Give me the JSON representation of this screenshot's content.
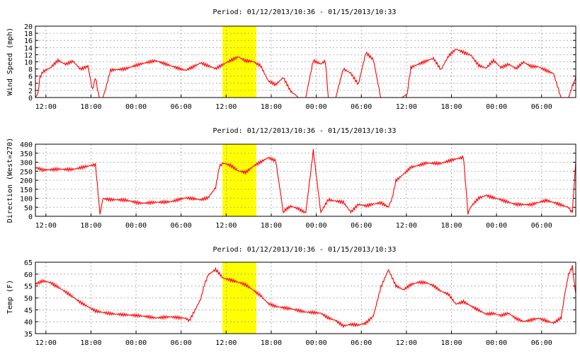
{
  "colors": {
    "series": "#ff0000",
    "highlight": "#ffff00",
    "grid": "#a0a0a0",
    "axis": "#000000"
  },
  "chart_data": [
    {
      "type": "line",
      "title": "Period: 01/12/2013/10:36 - 01/15/2013/10:33",
      "xlabel": "",
      "ylabel": "Wind Speed (mph)",
      "x_tick_labels": [
        "12:00",
        "18:00",
        "00:00",
        "06:00",
        "12:00",
        "18:00",
        "00:00",
        "06:00",
        "12:00",
        "18:00",
        "00:00",
        "06:00"
      ],
      "x_tick_hours": [
        1.4,
        7.4,
        13.4,
        19.4,
        25.4,
        31.4,
        37.4,
        43.4,
        49.4,
        55.4,
        61.4,
        67.4
      ],
      "xlim_hours": [
        0,
        71.95
      ],
      "ylim": [
        0,
        20
      ],
      "yticks": [
        0,
        2,
        4,
        6,
        8,
        10,
        12,
        14,
        16,
        18,
        20
      ],
      "grid": true,
      "highlight_hours": [
        24.9,
        29.4
      ],
      "series": [
        {
          "x_hours": [
            0,
            0.3,
            0.6,
            1,
            2,
            3,
            4,
            5,
            6,
            7,
            7.6,
            8,
            8.5,
            9,
            10,
            12,
            14,
            16,
            18,
            20,
            22,
            23,
            24,
            25,
            26,
            27,
            28,
            29,
            30,
            31,
            32,
            33,
            34,
            35,
            35.5,
            36,
            37,
            38,
            38.6,
            39,
            40,
            41,
            42,
            43,
            44,
            45,
            46,
            47,
            48,
            48.8,
            49.5,
            50,
            51,
            52,
            53,
            54,
            55,
            56,
            57,
            58,
            59,
            60,
            61,
            62,
            63,
            64,
            65,
            66,
            67,
            68,
            69,
            70,
            71,
            71.5,
            71.95
          ],
          "values": [
            0,
            1,
            6,
            7,
            8,
            10,
            9,
            10,
            8,
            9,
            2,
            6,
            0,
            0,
            8,
            8,
            9,
            10,
            9,
            8,
            10,
            9,
            8,
            9,
            10,
            11,
            10,
            10,
            9,
            5,
            4,
            6,
            2,
            0,
            0,
            0,
            10,
            9,
            10,
            0,
            0,
            8,
            7,
            4,
            13,
            11,
            0,
            0,
            0,
            0,
            1,
            8,
            9,
            10,
            11,
            8,
            12,
            14,
            13,
            12,
            9,
            8,
            10,
            8,
            9,
            8,
            10,
            9,
            9,
            8,
            7,
            0,
            0,
            3,
            6
          ]
        }
      ]
    },
    {
      "type": "line",
      "title": "Period: 01/12/2013/10:36 - 01/15/2013/10:33",
      "xlabel": "",
      "ylabel": "Direction (West=270)",
      "x_tick_labels": [
        "12:00",
        "18:00",
        "00:00",
        "06:00",
        "12:00",
        "18:00",
        "00:00",
        "06:00",
        "12:00",
        "18:00",
        "00:00",
        "06:00"
      ],
      "x_tick_hours": [
        1.4,
        7.4,
        13.4,
        19.4,
        25.4,
        31.4,
        37.4,
        43.4,
        49.4,
        55.4,
        61.4,
        67.4
      ],
      "xlim_hours": [
        0,
        71.95
      ],
      "ylim": [
        0,
        400
      ],
      "yticks": [
        0,
        50,
        100,
        150,
        200,
        250,
        300,
        350,
        400
      ],
      "grid": true,
      "highlight_hours": [
        24.9,
        29.4
      ],
      "series": [
        {
          "x_hours": [
            0,
            1,
            3,
            5,
            7,
            8,
            8.6,
            9,
            10,
            12,
            14,
            16,
            18,
            20,
            22,
            23,
            24,
            24.5,
            25,
            26,
            27,
            28,
            29,
            30,
            30.5,
            31,
            32,
            33,
            34,
            35,
            36,
            37,
            38,
            39,
            40,
            41,
            42,
            43,
            44,
            45,
            46,
            47,
            47.5,
            48,
            50,
            52,
            54,
            56,
            57,
            57.6,
            58,
            59,
            60,
            62,
            64,
            66,
            68,
            70,
            71,
            71.5,
            71.95
          ],
          "values": [
            270,
            260,
            270,
            265,
            275,
            280,
            10,
            90,
            85,
            90,
            80,
            85,
            80,
            95,
            85,
            100,
            160,
            280,
            300,
            290,
            260,
            250,
            280,
            300,
            310,
            320,
            300,
            20,
            50,
            40,
            20,
            370,
            30,
            100,
            90,
            80,
            20,
            60,
            50,
            60,
            70,
            50,
            100,
            200,
            280,
            300,
            290,
            310,
            320,
            10,
            50,
            100,
            120,
            100,
            70,
            60,
            80,
            60,
            50,
            20,
            300
          ]
        }
      ]
    },
    {
      "type": "line",
      "title": "Period: 01/12/2013/10:36 - 01/15/2013/10:33",
      "xlabel": "",
      "ylabel": "Temp (F)",
      "x_tick_labels": [
        "12:00",
        "18:00",
        "00:00",
        "06:00",
        "12:00",
        "18:00",
        "00:00",
        "06:00",
        "12:00",
        "18:00",
        "00:00",
        "06:00"
      ],
      "x_tick_hours": [
        1.4,
        7.4,
        13.4,
        19.4,
        25.4,
        31.4,
        37.4,
        43.4,
        49.4,
        55.4,
        61.4,
        67.4
      ],
      "xlim_hours": [
        0,
        71.95
      ],
      "ylim": [
        35,
        65
      ],
      "yticks": [
        35,
        40,
        45,
        50,
        55,
        60,
        65
      ],
      "grid": true,
      "highlight_hours": [
        24.9,
        29.4
      ],
      "series": [
        {
          "x_hours": [
            0,
            1,
            2,
            4,
            6,
            8,
            10,
            12,
            14,
            16,
            18,
            20,
            20.5,
            21,
            22,
            22.5,
            23,
            24,
            25,
            26,
            27,
            28,
            29,
            30,
            31,
            32,
            34,
            36,
            38,
            39,
            40,
            41,
            42,
            43,
            44,
            45,
            46,
            47,
            48,
            49,
            50,
            51,
            52,
            53,
            54,
            55,
            56,
            57,
            58,
            59,
            60,
            61,
            62,
            63,
            64,
            65,
            66,
            67,
            68,
            69,
            70,
            70.5,
            71,
            71.5,
            71.95
          ],
          "values": [
            56,
            57,
            56,
            52,
            48,
            45,
            44,
            43,
            42,
            41,
            42,
            42,
            41,
            44,
            50,
            56,
            60,
            62,
            58,
            57,
            56,
            55,
            53,
            51,
            48,
            47,
            46,
            44,
            43,
            41,
            40,
            38,
            39,
            39,
            40,
            43,
            55,
            62,
            55,
            53,
            55,
            56,
            56,
            55,
            53,
            52,
            48,
            49,
            47,
            45,
            43,
            43,
            42,
            43,
            41,
            40,
            41,
            42,
            41,
            40,
            42,
            52,
            60,
            63,
            52
          ]
        }
      ]
    }
  ]
}
